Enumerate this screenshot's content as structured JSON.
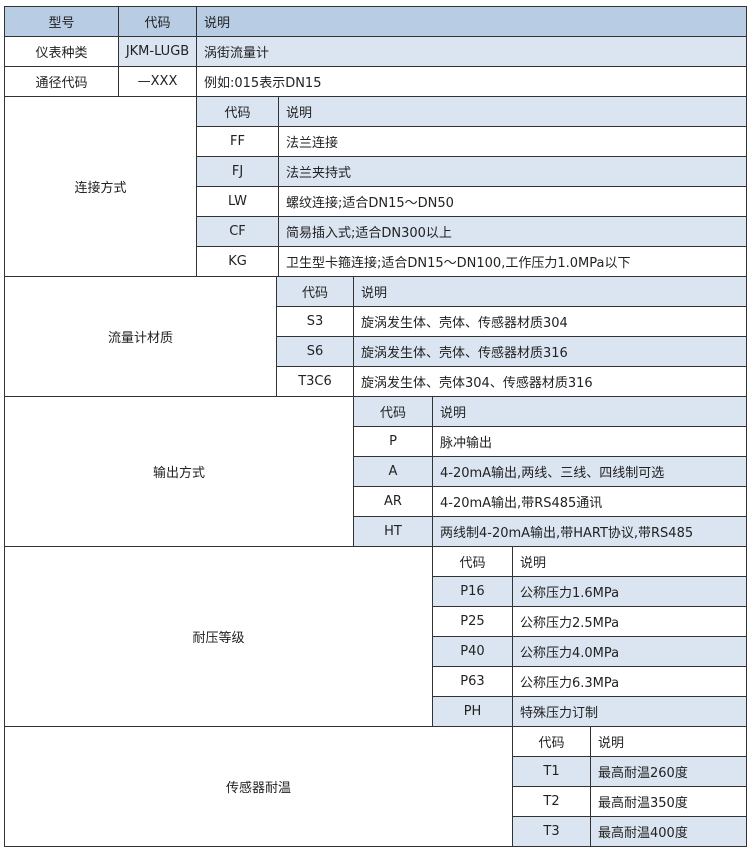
{
  "header": {
    "model": "型号",
    "code": "代码",
    "desc": "说明"
  },
  "rows": [
    {
      "label": "仪表种类",
      "code": "JKM-LUGB",
      "desc": "涡街流量计"
    },
    {
      "label": "通径代码",
      "code": "—XXX",
      "desc": "例如:015表示DN15"
    }
  ],
  "colors": {
    "header": "#b8cce4",
    "light": "#dbe5f1",
    "border": "#333333"
  },
  "sections": [
    {
      "title": "连接方式",
      "code_header": "代码",
      "desc_header": "说明",
      "items": [
        {
          "code": "FF",
          "desc": "法兰连接"
        },
        {
          "code": "FJ",
          "desc": "法兰夹持式"
        },
        {
          "code": "LW",
          "desc": "螺纹连接;适合DN15～DN50"
        },
        {
          "code": "CF",
          "desc": "简易插入式;适合DN300以上"
        },
        {
          "code": "KG",
          "desc": "卫生型卡箍连接;适合DN15～DN100,工作压力1.0MPa以下"
        }
      ]
    },
    {
      "title": "流量计材质",
      "code_header": "代码",
      "desc_header": "说明",
      "items": [
        {
          "code": "S3",
          "desc": "旋涡发生体、壳体、传感器材质304"
        },
        {
          "code": "S6",
          "desc": "旋涡发生体、壳体、传感器材质316"
        },
        {
          "code": "T3C6",
          "desc": "旋涡发生体、壳体304、传感器材质316"
        }
      ]
    },
    {
      "title": "输出方式",
      "code_header": "代码",
      "desc_header": "说明",
      "items": [
        {
          "code": "P",
          "desc": "脉冲输出"
        },
        {
          "code": "A",
          "desc": "4-20mA输出,两线、三线、四线制可选"
        },
        {
          "code": "AR",
          "desc": "4-20mA输出,带RS485通讯"
        },
        {
          "code": "HT",
          "desc": "两线制4-20mA输出,带HART协议,带RS485"
        }
      ]
    },
    {
      "title": "耐压等级",
      "code_header": "代码",
      "desc_header": "说明",
      "items": [
        {
          "code": "P16",
          "desc": "公称压力1.6MPa"
        },
        {
          "code": "P25",
          "desc": "公称压力2.5MPa"
        },
        {
          "code": "P40",
          "desc": "公称压力4.0MPa"
        },
        {
          "code": "P63",
          "desc": "公称压力6.3MPa"
        },
        {
          "code": "PH",
          "desc": "特殊压力订制"
        }
      ]
    },
    {
      "title": "传感器耐温",
      "code_header": "代码",
      "desc_header": "说明",
      "items": [
        {
          "code": "T1",
          "desc": "最高耐温260度"
        },
        {
          "code": "T2",
          "desc": "最高耐温350度"
        },
        {
          "code": "T3",
          "desc": "最高耐温400度"
        }
      ]
    }
  ]
}
